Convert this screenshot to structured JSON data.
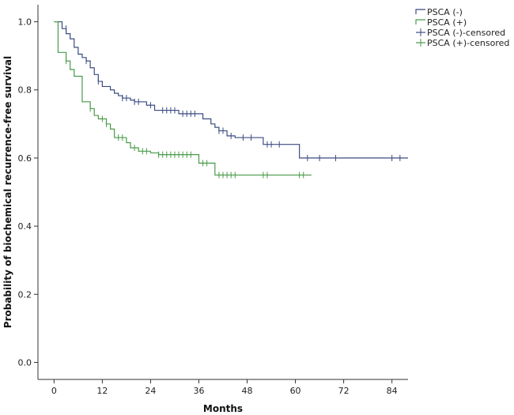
{
  "chart_data": {
    "type": "line",
    "subtype": "kaplan-meier",
    "title": "",
    "xlabel": "Months",
    "ylabel": "Probability of biochemical recurrence-free survival",
    "xlim": [
      -4,
      88
    ],
    "ylim": [
      -0.05,
      1.05
    ],
    "xticks": [
      0,
      12,
      24,
      36,
      48,
      60,
      72,
      84
    ],
    "yticks": [
      0.0,
      0.2,
      0.4,
      0.6,
      0.8,
      1.0
    ],
    "ytick_labels": [
      "0.0",
      "0.2",
      "0.4",
      "0.6",
      "0.8",
      "1.0"
    ],
    "legend_position": "top-right",
    "series": [
      {
        "name": "PSCA (-)",
        "censored_label": "PSCA (-)-censored",
        "color": "#3b4b82",
        "steps": [
          [
            0,
            1.0
          ],
          [
            2,
            0.98
          ],
          [
            3,
            0.965
          ],
          [
            4,
            0.95
          ],
          [
            5,
            0.925
          ],
          [
            6,
            0.905
          ],
          [
            7,
            0.895
          ],
          [
            8,
            0.885
          ],
          [
            9,
            0.865
          ],
          [
            10,
            0.845
          ],
          [
            11,
            0.825
          ],
          [
            12,
            0.81
          ],
          [
            14,
            0.8
          ],
          [
            15,
            0.79
          ],
          [
            16,
            0.783
          ],
          [
            17,
            0.776
          ],
          [
            19,
            0.77
          ],
          [
            20,
            0.765
          ],
          [
            23,
            0.755
          ],
          [
            25,
            0.74
          ],
          [
            31,
            0.73
          ],
          [
            37,
            0.715
          ],
          [
            39,
            0.7
          ],
          [
            40,
            0.69
          ],
          [
            41,
            0.68
          ],
          [
            43,
            0.665
          ],
          [
            45,
            0.66
          ],
          [
            52,
            0.64
          ],
          [
            57,
            0.64
          ],
          [
            61,
            0.6
          ]
        ],
        "end_x": 88,
        "censored": [
          [
            3,
            0.98
          ],
          [
            8,
            0.885
          ],
          [
            11,
            0.825
          ],
          [
            17,
            0.776
          ],
          [
            18,
            0.776
          ],
          [
            20,
            0.765
          ],
          [
            21,
            0.765
          ],
          [
            24,
            0.755
          ],
          [
            27,
            0.74
          ],
          [
            28,
            0.74
          ],
          [
            29,
            0.74
          ],
          [
            30,
            0.74
          ],
          [
            32,
            0.73
          ],
          [
            33,
            0.73
          ],
          [
            34,
            0.73
          ],
          [
            35,
            0.73
          ],
          [
            41,
            0.68
          ],
          [
            42,
            0.68
          ],
          [
            44,
            0.665
          ],
          [
            47,
            0.66
          ],
          [
            49,
            0.66
          ],
          [
            53,
            0.64
          ],
          [
            54,
            0.64
          ],
          [
            56,
            0.64
          ],
          [
            63,
            0.6
          ],
          [
            66,
            0.6
          ],
          [
            70,
            0.6
          ],
          [
            84,
            0.6
          ],
          [
            86,
            0.6
          ]
        ]
      },
      {
        "name": "PSCA (+)",
        "censored_label": "PSCA (+)-censored",
        "color": "#4a9a4a",
        "steps": [
          [
            0,
            1.0
          ],
          [
            1,
            0.91
          ],
          [
            3,
            0.885
          ],
          [
            4,
            0.86
          ],
          [
            5,
            0.84
          ],
          [
            7,
            0.765
          ],
          [
            9,
            0.745
          ],
          [
            10,
            0.725
          ],
          [
            11,
            0.715
          ],
          [
            13,
            0.7
          ],
          [
            14,
            0.685
          ],
          [
            15,
            0.66
          ],
          [
            18,
            0.645
          ],
          [
            19,
            0.63
          ],
          [
            21,
            0.62
          ],
          [
            24,
            0.615
          ],
          [
            26,
            0.61
          ],
          [
            36,
            0.585
          ],
          [
            40,
            0.55
          ]
        ],
        "end_x": 64,
        "censored": [
          [
            3,
            0.885
          ],
          [
            9,
            0.745
          ],
          [
            12,
            0.715
          ],
          [
            13,
            0.7
          ],
          [
            16,
            0.66
          ],
          [
            17,
            0.66
          ],
          [
            20,
            0.63
          ],
          [
            22,
            0.62
          ],
          [
            23,
            0.62
          ],
          [
            26,
            0.61
          ],
          [
            27,
            0.61
          ],
          [
            28,
            0.61
          ],
          [
            29,
            0.61
          ],
          [
            30,
            0.61
          ],
          [
            31,
            0.61
          ],
          [
            32,
            0.61
          ],
          [
            33,
            0.61
          ],
          [
            34,
            0.61
          ],
          [
            37,
            0.585
          ],
          [
            38,
            0.585
          ],
          [
            41,
            0.55
          ],
          [
            42,
            0.55
          ],
          [
            43,
            0.55
          ],
          [
            44,
            0.55
          ],
          [
            45,
            0.55
          ],
          [
            52,
            0.55
          ],
          [
            53,
            0.55
          ],
          [
            61,
            0.55
          ],
          [
            62,
            0.55
          ]
        ]
      }
    ]
  }
}
